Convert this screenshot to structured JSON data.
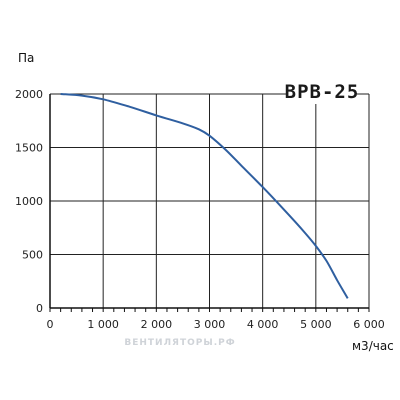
{
  "chart_data": {
    "type": "line",
    "title": "BPB-25",
    "xlabel": "м3/час",
    "ylabel": "Па",
    "xlim": [
      0,
      6000
    ],
    "ylim": [
      0,
      2000
    ],
    "x_ticks": [
      0,
      1000,
      2000,
      3000,
      4000,
      5000,
      6000
    ],
    "y_ticks": [
      0,
      500,
      1000,
      1500,
      2000
    ],
    "x_tick_labels": [
      "0",
      "1 000",
      "2 000",
      "3 000",
      "4 000",
      "5 000",
      "6 000"
    ],
    "y_tick_labels": [
      "0",
      "500",
      "1000",
      "1500",
      "2000"
    ],
    "x_minor_step": 200,
    "grid": true,
    "watermark": "ВЕНТИЛЯТОРЫ.РФ",
    "colors": {
      "line": "#2f5fa0",
      "grid": "#222222",
      "axis": "#111111"
    },
    "series": [
      {
        "x": [
          200,
          600,
          1000,
          1500,
          2000,
          2500,
          2800,
          3000,
          3300,
          3600,
          4000,
          4400,
          4800,
          5000,
          5200,
          5400,
          5600
        ],
        "y": [
          2000,
          1985,
          1950,
          1880,
          1800,
          1725,
          1670,
          1610,
          1480,
          1330,
          1130,
          920,
          700,
          580,
          440,
          260,
          90
        ]
      }
    ]
  }
}
